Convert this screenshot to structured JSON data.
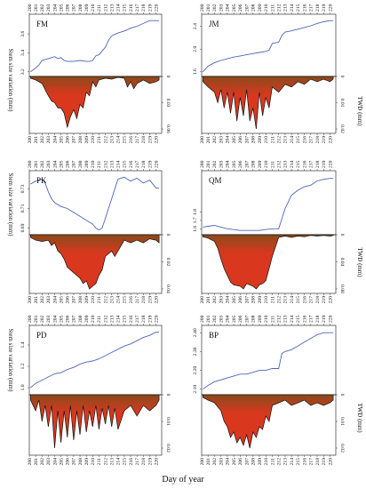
{
  "figure": {
    "xlabel": "Day of year",
    "ylabel_left": "Stem size variation  (mm)",
    "ylabel_right": "TWD  (mm)",
    "x_ticks": [
      200,
      201,
      202,
      203,
      204,
      205,
      206,
      207,
      208,
      209,
      210,
      211,
      212,
      213,
      214,
      215,
      216,
      217,
      218,
      219,
      220
    ],
    "colors": {
      "stem_line": "#4b66b5",
      "twd_fill": "#d9381e",
      "twd_fill_dark": "#8a4a1c",
      "twd_outline": "#111111",
      "axis": "#111111"
    }
  },
  "chart_data": [
    {
      "type": "line",
      "panel": "FM",
      "x_range": [
        200,
        220.9
      ],
      "stem": {
        "yticks": [
          "3.2",
          "3.4",
          "3.6"
        ],
        "ylim": [
          3.17,
          3.77
        ],
        "x": [
          200.2,
          201,
          201.5,
          202,
          203,
          204,
          204.5,
          205,
          205.5,
          206,
          207,
          208,
          209,
          209.5,
          210,
          210.5,
          211,
          211.5,
          212,
          212.5,
          213,
          214,
          215,
          216,
          217,
          218,
          219,
          220.5
        ],
        "y": [
          3.2,
          3.24,
          3.27,
          3.32,
          3.34,
          3.36,
          3.34,
          3.35,
          3.32,
          3.31,
          3.31,
          3.32,
          3.31,
          3.31,
          3.32,
          3.37,
          3.38,
          3.42,
          3.46,
          3.53,
          3.58,
          3.61,
          3.63,
          3.66,
          3.68,
          3.71,
          3.74,
          3.74
        ]
      },
      "twd": {
        "yticks": [
          "0",
          "0.03",
          "0.06"
        ],
        "ylim": [
          0,
          0.063
        ],
        "x": [
          200.2,
          201,
          202,
          202.5,
          203,
          203.5,
          204,
          204.5,
          205,
          205.5,
          206,
          206.5,
          207,
          207.5,
          208,
          208.5,
          209,
          209.5,
          210,
          210.5,
          211,
          212,
          213,
          214,
          215,
          215.5,
          216,
          216.5,
          217,
          218,
          219,
          220,
          220.5
        ],
        "y": [
          0.002,
          0.004,
          0.008,
          0.015,
          0.022,
          0.028,
          0.03,
          0.036,
          0.036,
          0.042,
          0.058,
          0.046,
          0.038,
          0.048,
          0.032,
          0.036,
          0.018,
          0.022,
          0.006,
          0.012,
          0.004,
          0.002,
          0.003,
          0.001,
          0.002,
          0.012,
          0.006,
          0.014,
          0.008,
          0.004,
          0.008,
          0.006,
          0.004
        ]
      }
    },
    {
      "type": "line",
      "panel": "JM",
      "x_range": [
        200,
        220.9
      ],
      "stem": {
        "yticks": [
          "1.6",
          "2.0",
          "2.4"
        ],
        "ylim": [
          1.55,
          2.55
        ],
        "x": [
          200.2,
          201,
          202,
          203,
          204,
          205,
          206,
          207,
          208,
          209,
          210,
          210.5,
          211,
          212,
          212.5,
          213,
          214,
          215,
          216,
          217,
          218,
          219,
          220,
          220.5
        ],
        "y": [
          1.6,
          1.7,
          1.76,
          1.8,
          1.83,
          1.86,
          1.88,
          1.9,
          1.92,
          1.94,
          1.96,
          1.98,
          2.1,
          2.12,
          2.24,
          2.3,
          2.32,
          2.35,
          2.38,
          2.41,
          2.45,
          2.48,
          2.5,
          2.5
        ]
      },
      "twd": {
        "yticks": [
          "0",
          "0.01",
          "0.02"
        ],
        "ylim": [
          0,
          0.021
        ],
        "x": [
          200.2,
          201,
          202,
          202.5,
          203,
          203.5,
          204,
          204.5,
          205,
          205.5,
          206,
          206.5,
          207,
          207.5,
          208,
          208.5,
          209,
          209.5,
          210,
          210.5,
          211,
          212,
          213,
          214,
          215,
          216,
          217,
          218,
          219,
          220,
          220.5
        ],
        "y": [
          0.002,
          0.004,
          0.006,
          0.01,
          0.005,
          0.012,
          0.006,
          0.014,
          0.006,
          0.017,
          0.008,
          0.015,
          0.005,
          0.017,
          0.012,
          0.02,
          0.006,
          0.015,
          0.008,
          0.012,
          0.004,
          0.006,
          0.003,
          0.004,
          0.002,
          0.003,
          0.001,
          0.002,
          0.001,
          0.002,
          0.001
        ]
      }
    },
    {
      "type": "line",
      "panel": "PK",
      "x_range": [
        200,
        220.9
      ],
      "stem": {
        "yticks": [
          "0.69",
          "0.71",
          "0.73"
        ],
        "ylim": [
          0.685,
          0.745
        ],
        "x": [
          200.2,
          201,
          202,
          202.5,
          203,
          203.5,
          204,
          205,
          206,
          207,
          208,
          209,
          210,
          210.5,
          211,
          211.5,
          212,
          213,
          214,
          215,
          216,
          217,
          218,
          219,
          220,
          220.5
        ],
        "y": [
          0.735,
          0.738,
          0.74,
          0.736,
          0.727,
          0.72,
          0.716,
          0.712,
          0.71,
          0.706,
          0.702,
          0.698,
          0.694,
          0.69,
          0.688,
          0.69,
          0.7,
          0.72,
          0.74,
          0.742,
          0.738,
          0.741,
          0.736,
          0.739,
          0.731,
          0.731
        ]
      },
      "twd": {
        "yticks": [
          "0",
          "0.02",
          "0.04"
        ],
        "ylim": [
          0,
          0.042
        ],
        "x": [
          200.2,
          201,
          202,
          203,
          203.5,
          204,
          204.5,
          205,
          205.5,
          206,
          207,
          208,
          208.5,
          209,
          209.5,
          210,
          210.5,
          211,
          211.5,
          212,
          213,
          213.5,
          214,
          214.5,
          215,
          216,
          217,
          218,
          219,
          220,
          220.5
        ],
        "y": [
          0.002,
          0.004,
          0.005,
          0.004,
          0.008,
          0.006,
          0.012,
          0.014,
          0.018,
          0.024,
          0.028,
          0.032,
          0.036,
          0.034,
          0.04,
          0.038,
          0.036,
          0.03,
          0.026,
          0.016,
          0.012,
          0.016,
          0.012,
          0.008,
          0.004,
          0.006,
          0.004,
          0.006,
          0.003,
          0.004,
          0.006
        ]
      }
    },
    {
      "type": "line",
      "panel": "QM",
      "x_range": [
        200,
        220.9
      ],
      "stem": {
        "yticks": [
          "1.6",
          "1.7",
          "1.8"
        ],
        "ylim": [
          1.55,
          2.25
        ],
        "x": [
          200.2,
          201,
          202,
          203,
          204,
          205,
          206,
          207,
          208,
          209,
          210,
          211,
          212,
          212.5,
          213,
          213.5,
          214,
          215,
          216,
          217,
          218,
          219,
          220,
          220.5
        ],
        "y": [
          1.62,
          1.63,
          1.64,
          1.62,
          1.6,
          1.59,
          1.58,
          1.58,
          1.58,
          1.58,
          1.59,
          1.6,
          1.6,
          1.72,
          1.84,
          1.92,
          2.0,
          2.06,
          2.1,
          2.12,
          2.17,
          2.19,
          2.2,
          2.2
        ]
      },
      "twd": {
        "yticks": [
          "0",
          "0.04",
          "0.08"
        ],
        "ylim": [
          0,
          0.084
        ],
        "x": [
          200.2,
          201,
          202,
          202.5,
          203,
          203.5,
          204,
          204.5,
          205,
          206,
          206.5,
          207,
          208,
          208.5,
          209,
          209.5,
          210,
          210.5,
          211,
          212,
          213,
          214,
          215,
          216,
          217,
          218,
          219,
          220,
          220.5
        ],
        "y": [
          0.003,
          0.005,
          0.01,
          0.02,
          0.036,
          0.05,
          0.06,
          0.07,
          0.074,
          0.076,
          0.08,
          0.072,
          0.076,
          0.08,
          0.074,
          0.072,
          0.068,
          0.05,
          0.032,
          0.004,
          0.002,
          0.004,
          0.002,
          0.003,
          0.001,
          0.002,
          0.001,
          0.002,
          0.001
        ]
      }
    },
    {
      "type": "line",
      "panel": "PD",
      "x_range": [
        200,
        220.9
      ],
      "stem": {
        "yticks": [
          "1.0",
          "1.2",
          "1.4"
        ],
        "ylim": [
          0.95,
          1.55
        ],
        "x": [
          200.2,
          201,
          202,
          203,
          204,
          205,
          206,
          207,
          208,
          209,
          210,
          211,
          212,
          213,
          214,
          215,
          216,
          217,
          218,
          219,
          220,
          220.5
        ],
        "y": [
          1.0,
          1.04,
          1.07,
          1.1,
          1.13,
          1.14,
          1.17,
          1.19,
          1.22,
          1.24,
          1.25,
          1.27,
          1.3,
          1.33,
          1.36,
          1.39,
          1.41,
          1.44,
          1.47,
          1.49,
          1.52,
          1.52
        ]
      },
      "twd": {
        "yticks": [
          "0",
          "0.01",
          "0.02"
        ],
        "ylim": [
          0,
          0.022
        ],
        "x": [
          200.2,
          201,
          201.5,
          202,
          202.5,
          203,
          203.5,
          204,
          204.5,
          205,
          205.5,
          206,
          206.5,
          207,
          207.5,
          208,
          208.5,
          209,
          209.5,
          210,
          210.5,
          211,
          211.5,
          212,
          212.5,
          213,
          213.5,
          214,
          215,
          216,
          217,
          218,
          219,
          220,
          220.5
        ],
        "y": [
          0.002,
          0.006,
          0.002,
          0.01,
          0.004,
          0.012,
          0.004,
          0.02,
          0.006,
          0.018,
          0.006,
          0.016,
          0.004,
          0.017,
          0.006,
          0.015,
          0.004,
          0.014,
          0.006,
          0.012,
          0.004,
          0.013,
          0.005,
          0.011,
          0.004,
          0.012,
          0.005,
          0.013,
          0.006,
          0.004,
          0.008,
          0.004,
          0.006,
          0.004,
          0.002
        ]
      }
    },
    {
      "type": "line",
      "panel": "BP",
      "x_range": [
        200,
        220.9
      ],
      "stem": {
        "yticks": [
          "2.10",
          "2.20",
          "2.30",
          "2.40"
        ],
        "ylim": [
          2.08,
          2.42
        ],
        "x": [
          200.2,
          201,
          202,
          203,
          204,
          205,
          206,
          207,
          208,
          209,
          210,
          211,
          212,
          212.5,
          213,
          214,
          215,
          216,
          217,
          218,
          219,
          220,
          220.5
        ],
        "y": [
          2.1,
          2.12,
          2.14,
          2.15,
          2.16,
          2.17,
          2.18,
          2.18,
          2.19,
          2.2,
          2.2,
          2.21,
          2.21,
          2.29,
          2.3,
          2.31,
          2.33,
          2.35,
          2.37,
          2.39,
          2.4,
          2.4,
          2.4
        ]
      },
      "twd": {
        "yticks": [
          "0",
          "0.01",
          "0.02"
        ],
        "ylim": [
          0,
          0.022
        ],
        "x": [
          200.2,
          201,
          202,
          203,
          203.5,
          204,
          204.5,
          205,
          205.5,
          206,
          206.5,
          207,
          207.5,
          208,
          208.5,
          209,
          209.5,
          210,
          210.5,
          211,
          212,
          213,
          214,
          215,
          216,
          217,
          218,
          219,
          220,
          220.5
        ],
        "y": [
          0.001,
          0.002,
          0.003,
          0.006,
          0.01,
          0.012,
          0.016,
          0.014,
          0.018,
          0.016,
          0.019,
          0.015,
          0.02,
          0.014,
          0.016,
          0.012,
          0.013,
          0.008,
          0.01,
          0.004,
          0.003,
          0.002,
          0.004,
          0.003,
          0.002,
          0.004,
          0.003,
          0.004,
          0.003,
          0.002
        ]
      }
    }
  ]
}
